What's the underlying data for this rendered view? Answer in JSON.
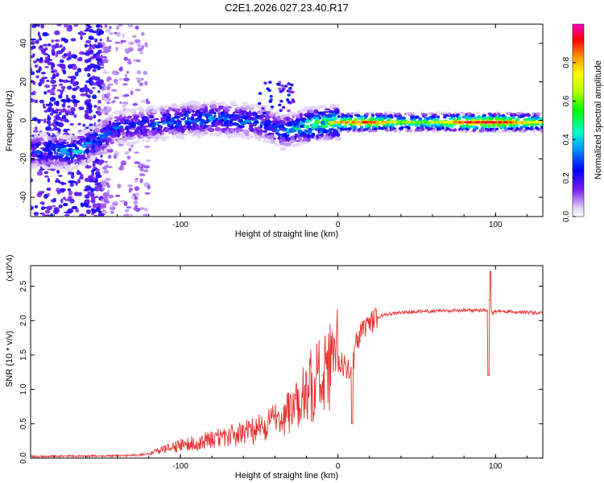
{
  "figure_title": "C2E1.2026.027.23.40.R17",
  "chart_data": [
    {
      "type": "heatmap",
      "xlabel": "Height of straight line (km)",
      "ylabel": "Frequency (Hz)",
      "xlim": [
        -195,
        130
      ],
      "ylim": [
        -50,
        50
      ],
      "xticks": [
        -100,
        0,
        100
      ],
      "xtick_labels": [
        "-100",
        "0",
        "100"
      ],
      "yticks": [
        -40,
        -20,
        0,
        20,
        40
      ],
      "ytick_labels": [
        "-40",
        "-20",
        "0",
        "20",
        "40"
      ],
      "colorbar": {
        "label": "Normalized spectral amplitude",
        "range": [
          0,
          1
        ],
        "ticks": [
          0.0,
          0.2,
          0.4,
          0.6,
          0.8
        ],
        "tick_labels": [
          "0.0",
          "0.2",
          "0.4",
          "0.6",
          "0.8"
        ]
      },
      "ridge": {
        "x": [
          -195,
          -180,
          -170,
          -160,
          -150,
          -140,
          -130,
          -120,
          -100,
          -80,
          -60,
          -45,
          -35,
          -25,
          -15,
          -5,
          0,
          10,
          20,
          40,
          60,
          80,
          100,
          130
        ],
        "freq": [
          -16,
          -16,
          -17,
          -14,
          -9,
          -4,
          -3,
          -2,
          0,
          1,
          0,
          -2,
          -6,
          -4,
          -2,
          -1,
          -1,
          -1,
          -1,
          -1,
          -1,
          -1,
          -1,
          -1
        ],
        "amplitude": [
          0.3,
          0.35,
          0.4,
          0.4,
          0.35,
          0.3,
          0.3,
          0.3,
          0.35,
          0.35,
          0.35,
          0.3,
          0.35,
          0.45,
          0.55,
          0.65,
          0.7,
          0.75,
          0.8,
          0.55,
          0.55,
          0.8,
          0.85,
          0.6
        ]
      }
    },
    {
      "type": "line",
      "xlabel": "Height of straight line (km)",
      "ylabel": "SNR (10 * v/v)",
      "y_multiplier": "(x10^4)",
      "xlim": [
        -195,
        130
      ],
      "ylim": [
        0,
        2.8
      ],
      "xticks": [
        -100,
        0,
        100
      ],
      "xtick_labels": [
        "-100",
        "0",
        "100"
      ],
      "yticks": [
        0.0,
        0.5,
        1.0,
        1.5,
        2.0,
        2.5
      ],
      "ytick_labels": [
        "0.0",
        "0.5",
        "1.0",
        "1.5",
        "2.0",
        "2.5"
      ],
      "series": [
        {
          "name": "SNR",
          "color": "#e83030",
          "x": [
            -195,
            -170,
            -150,
            -130,
            -120,
            -110,
            -100,
            -90,
            -80,
            -70,
            -60,
            -50,
            -40,
            -30,
            -25,
            -20,
            -15,
            -10,
            -5,
            0,
            5,
            8,
            10,
            12,
            15,
            20,
            25,
            30,
            40,
            50,
            60,
            70,
            80,
            90,
            95,
            96,
            98,
            100,
            110,
            120,
            130
          ],
          "y": [
            0.02,
            0.03,
            0.03,
            0.04,
            0.06,
            0.12,
            0.18,
            0.22,
            0.26,
            0.3,
            0.34,
            0.4,
            0.52,
            0.62,
            0.78,
            0.92,
            1.05,
            1.2,
            1.35,
            1.4,
            1.35,
            1.25,
            1.45,
            1.7,
            1.82,
            1.95,
            2.05,
            2.09,
            2.12,
            2.13,
            2.14,
            2.14,
            2.15,
            2.15,
            2.15,
            2.3,
            2.1,
            2.14,
            2.13,
            2.12,
            2.11
          ]
        }
      ]
    }
  ]
}
